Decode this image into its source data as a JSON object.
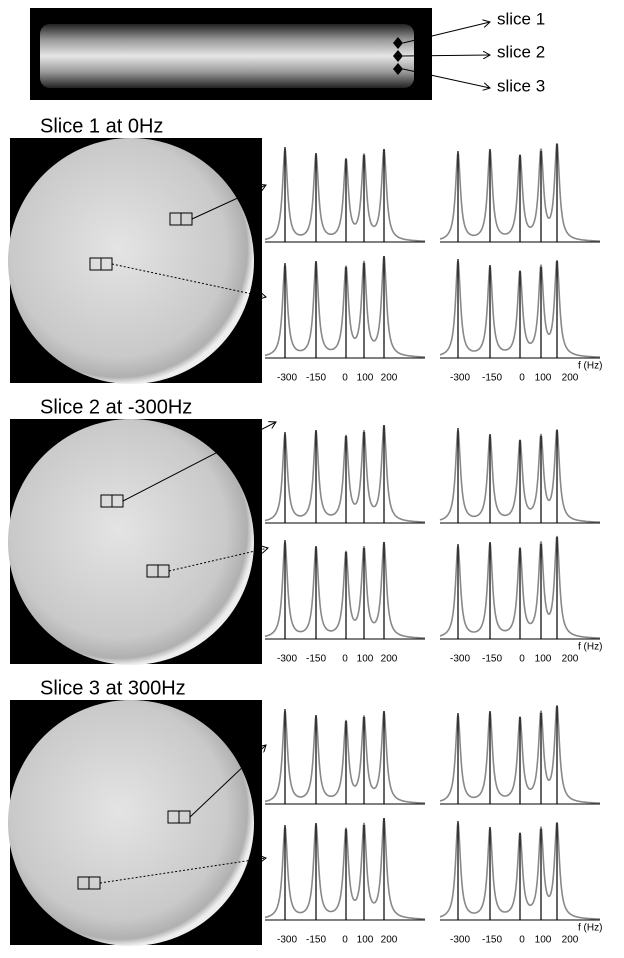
{
  "top_image": {
    "labels": [
      "slice 1",
      "slice 2",
      "slice 3"
    ]
  },
  "panels": [
    {
      "title": "Slice 1 at 0Hz",
      "axes": [
        {
          "ticks": [
            -300,
            -150,
            0,
            100,
            200
          ]
        },
        {
          "ticks": [
            -300,
            -150,
            0,
            100,
            200
          ],
          "unit": "f (Hz)"
        }
      ]
    },
    {
      "title": "Slice 2 at -300Hz",
      "axes": [
        {
          "ticks": [
            -300,
            -150,
            0,
            100,
            200
          ]
        },
        {
          "ticks": [
            -300,
            -150,
            0,
            100,
            200
          ],
          "unit": "f (Hz)"
        }
      ]
    },
    {
      "title": "Slice 3 at 300Hz",
      "axes": [
        {
          "ticks": [
            -300,
            -150,
            0,
            100,
            200
          ]
        },
        {
          "ticks": [
            -300,
            -150,
            0,
            100,
            200
          ],
          "unit": "f (Hz)"
        }
      ]
    }
  ]
}
